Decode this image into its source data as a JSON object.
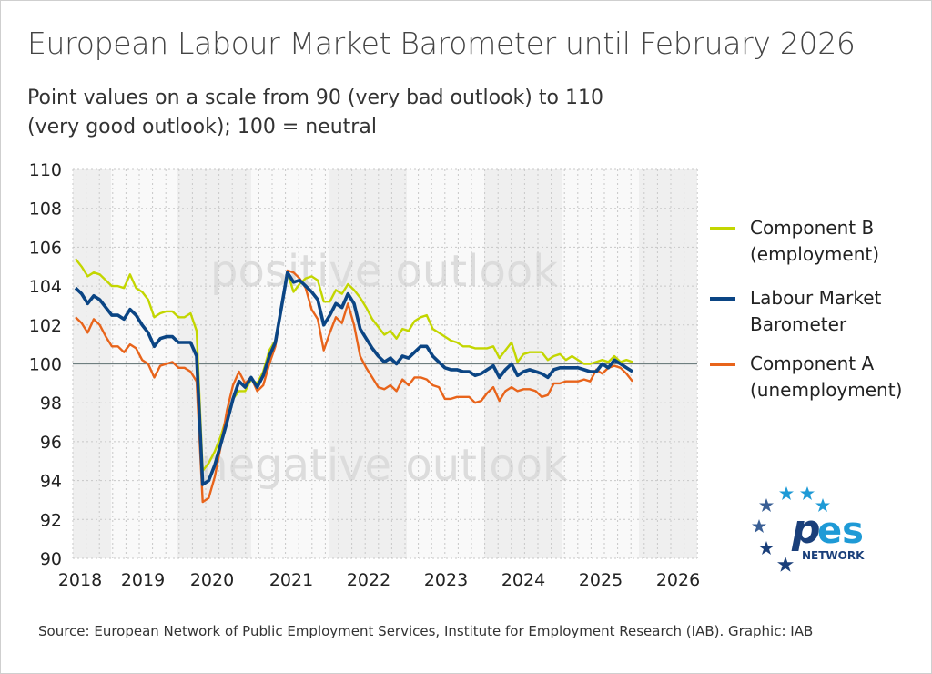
{
  "title": "European Labour Market Barometer until February 2026",
  "subtitle": "Point values on a scale from 90 (very bad outlook) to 110 (very good outlook); 100 = neutral",
  "source": "Source: European Network of Public Employment Services, Institute for Employment Research (IAB). Graphic: IAB",
  "logo": {
    "text": "pes",
    "subtext": "NETWORK",
    "colors": {
      "dark": "#1a3f7a",
      "light": "#1e9ad6"
    }
  },
  "chart_data": {
    "type": "line",
    "title": "European Labour Market Barometer until February 2026",
    "ylim": [
      90,
      110
    ],
    "yticks": [
      90,
      92,
      94,
      96,
      98,
      100,
      102,
      104,
      106,
      108,
      110
    ],
    "xticks": [
      "2018",
      "2019",
      "2020",
      "2021",
      "2022",
      "2023",
      "2024",
      "2025",
      "2026"
    ],
    "reference_line": 100,
    "grid": true,
    "legend_placement": "right",
    "annotations": [
      "positive outlook",
      "negative outlook"
    ],
    "series": [
      {
        "name": "Component B (employment)",
        "color": "#c3d600",
        "values": [
          105.4,
          105.0,
          104.5,
          104.7,
          104.6,
          104.3,
          104.0,
          104.0,
          103.9,
          104.6,
          103.9,
          103.7,
          103.3,
          102.4,
          102.6,
          102.7,
          102.7,
          102.4,
          102.4,
          102.6,
          101.7,
          94.5,
          94.9,
          95.5,
          96.3,
          97.3,
          98.2,
          98.6,
          98.6,
          99.2,
          99.0,
          99.6,
          100.7,
          101.2,
          102.9,
          104.7,
          103.7,
          104.1,
          104.4,
          104.5,
          104.3,
          103.2,
          103.2,
          103.8,
          103.6,
          104.1,
          103.8,
          103.4,
          102.9,
          102.3,
          101.9,
          101.5,
          101.7,
          101.3,
          101.8,
          101.7,
          102.2,
          102.4,
          102.5,
          101.8,
          101.6,
          101.4,
          101.2,
          101.1,
          100.9,
          100.9,
          100.8,
          100.8,
          100.8,
          100.9,
          100.3,
          100.7,
          101.1,
          100.1,
          100.5,
          100.6,
          100.6,
          100.6,
          100.2,
          100.4,
          100.5,
          100.2,
          100.4,
          100.2,
          100.0,
          100.0,
          100.1,
          100.2,
          100.1,
          100.4,
          100.1,
          100.2,
          100.1
        ]
      },
      {
        "name": "Labour Market Barometer",
        "color": "#0b4584",
        "values": [
          103.9,
          103.6,
          103.1,
          103.5,
          103.3,
          102.9,
          102.5,
          102.5,
          102.3,
          102.8,
          102.5,
          102.0,
          101.6,
          100.9,
          101.3,
          101.4,
          101.4,
          101.1,
          101.1,
          101.1,
          100.4,
          93.8,
          94.0,
          94.8,
          95.9,
          97.0,
          98.2,
          99.1,
          98.8,
          99.3,
          98.8,
          99.4,
          100.4,
          101.1,
          102.9,
          104.7,
          104.2,
          104.3,
          104.0,
          103.7,
          103.3,
          102.0,
          102.5,
          103.1,
          102.9,
          103.6,
          103.1,
          101.8,
          101.3,
          100.8,
          100.4,
          100.1,
          100.3,
          100.0,
          100.4,
          100.3,
          100.6,
          100.9,
          100.9,
          100.4,
          100.1,
          99.8,
          99.7,
          99.7,
          99.6,
          99.6,
          99.4,
          99.5,
          99.7,
          99.9,
          99.3,
          99.7,
          100.0,
          99.4,
          99.6,
          99.7,
          99.6,
          99.5,
          99.3,
          99.7,
          99.8,
          99.8,
          99.8,
          99.8,
          99.7,
          99.6,
          99.6,
          100.0,
          99.8,
          100.2,
          100.0,
          99.8,
          99.6
        ]
      },
      {
        "name": "Component A (unemployment)",
        "color": "#e8641b",
        "values": [
          102.4,
          102.1,
          101.6,
          102.3,
          102.0,
          101.4,
          100.9,
          100.9,
          100.6,
          101.0,
          100.8,
          100.2,
          100.0,
          99.3,
          99.9,
          100.0,
          100.1,
          99.8,
          99.8,
          99.6,
          99.1,
          92.9,
          93.1,
          94.2,
          95.8,
          97.6,
          98.9,
          99.6,
          99.0,
          99.3,
          98.6,
          98.9,
          100.0,
          100.9,
          102.9,
          104.8,
          104.7,
          104.4,
          103.9,
          102.8,
          102.3,
          100.7,
          101.6,
          102.4,
          102.1,
          103.1,
          102.0,
          100.4,
          99.8,
          99.3,
          98.8,
          98.7,
          98.9,
          98.6,
          99.2,
          98.9,
          99.3,
          99.3,
          99.2,
          98.9,
          98.8,
          98.2,
          98.2,
          98.3,
          98.3,
          98.3,
          98.0,
          98.1,
          98.5,
          98.8,
          98.1,
          98.6,
          98.8,
          98.6,
          98.7,
          98.7,
          98.6,
          98.3,
          98.4,
          99.0,
          99.0,
          99.1,
          99.1,
          99.1,
          99.2,
          99.1,
          99.7,
          99.5,
          99.8,
          99.9,
          99.8,
          99.5,
          99.1
        ]
      }
    ]
  },
  "legend": [
    {
      "label_line1": "Component B",
      "label_line2": "(employment)",
      "color": "#c3d600"
    },
    {
      "label_line1": "Labour Market",
      "label_line2": "Barometer",
      "color": "#0b4584"
    },
    {
      "label_line1": "Component A",
      "label_line2": "(unemployment)",
      "color": "#e8641b"
    }
  ]
}
